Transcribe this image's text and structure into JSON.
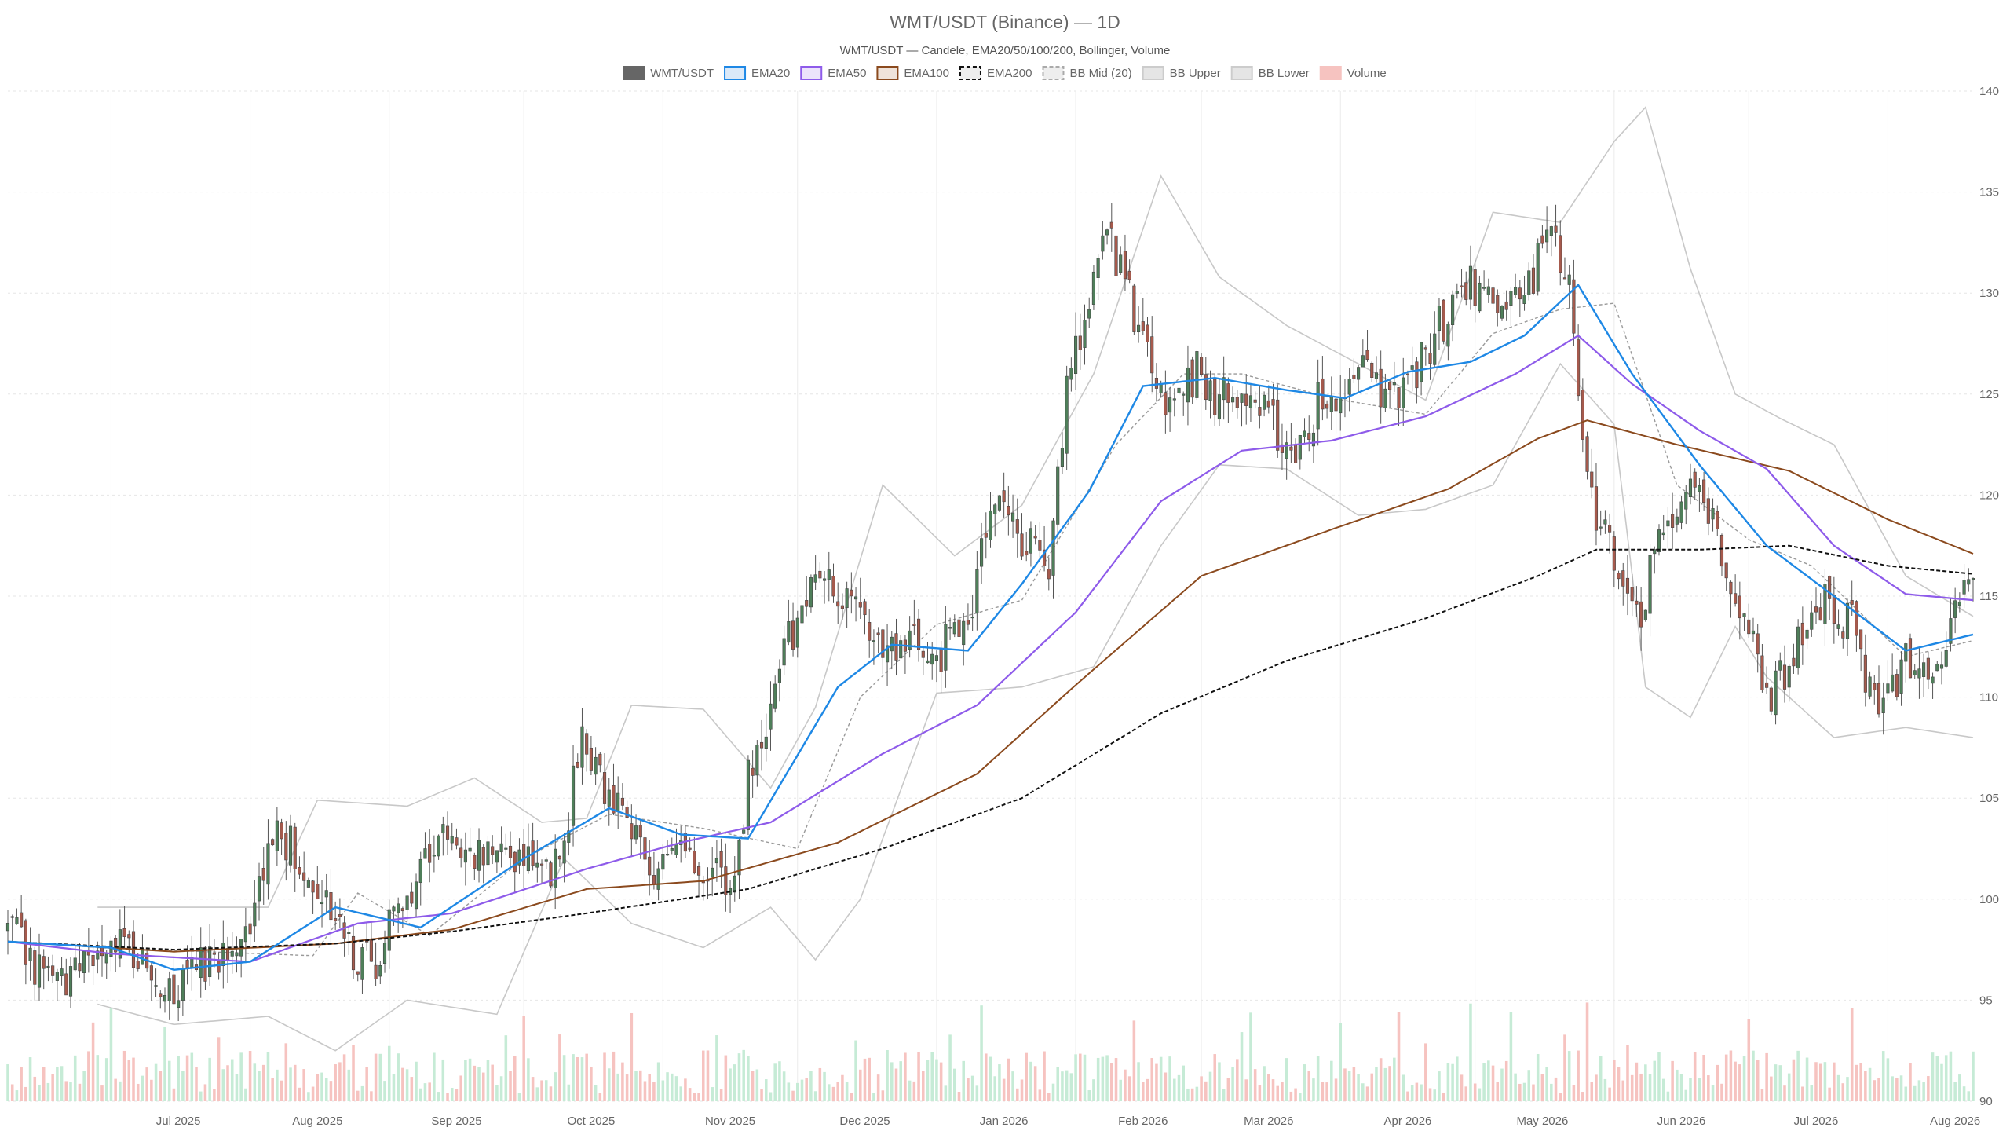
{
  "chart_data": {
    "type": "candlestick",
    "title": "WMT/USDT (Binance) — 1D",
    "subtitle": "WMT/USDT — Candele, EMA20/50/100/200, Bollinger, Volume",
    "ylim": [
      90,
      140
    ],
    "y_ticks": [
      90,
      95,
      100,
      105,
      110,
      115,
      120,
      125,
      130,
      135,
      140
    ],
    "x_ticks": [
      "Jul 2025",
      "Aug 2025",
      "Sep 2025",
      "Oct 2025",
      "Nov 2025",
      "Dec 2025",
      "Jan 2026",
      "Feb 2026",
      "Mar 2026",
      "Apr 2026",
      "May 2026",
      "Jun 2026",
      "Jul 2026",
      "Aug 2026"
    ],
    "grid": true,
    "legend_position": "top-center",
    "legend": [
      {
        "label": "WMT/USDT",
        "style": "solid",
        "color": "#666666",
        "fill": "#666666"
      },
      {
        "label": "EMA20",
        "style": "solid",
        "color": "#1e88e5",
        "fill": "#dbe9f8"
      },
      {
        "label": "EMA50",
        "style": "solid",
        "color": "#8e5bea",
        "fill": "#ece3fb"
      },
      {
        "label": "EMA100",
        "style": "solid",
        "color": "#8b4a1e",
        "fill": "#efe3da"
      },
      {
        "label": "EMA200",
        "style": "dashed",
        "color": "#111111",
        "fill": "#eeeeee"
      },
      {
        "label": "BB Mid (20)",
        "style": "dashed",
        "color": "#aaaaaa",
        "fill": "#eeeeee"
      },
      {
        "label": "BB Upper",
        "style": "solid",
        "color": "#cccccc",
        "fill": "#e5e5e5"
      },
      {
        "label": "BB Lower",
        "style": "solid",
        "color": "#cccccc",
        "fill": "#e5e5e5"
      },
      {
        "label": "Volume",
        "style": "solid",
        "color": "#f6c3c0",
        "fill": "#f6c3c0"
      }
    ],
    "colors": {
      "up": "#4f7f5a",
      "down": "#a65a4d",
      "ema20": "#1e88e5",
      "ema50": "#8e5bea",
      "ema100": "#8b4a1e",
      "ema200": "#111111",
      "bb_mid": "#9a9a9a",
      "bb_band": "#c8c8c8",
      "vol_up": "#c6ebd6",
      "vol_down": "#f6c3c0"
    },
    "anchors": {
      "close": [
        [
          "2025-06-08",
          98.6
        ],
        [
          "2025-06-14",
          96.8
        ],
        [
          "2025-06-20",
          95.6
        ],
        [
          "2025-06-27",
          97.3
        ],
        [
          "2025-07-04",
          98.2
        ],
        [
          "2025-07-10",
          96.4
        ],
        [
          "2025-07-16",
          95.6
        ],
        [
          "2025-07-22",
          96.8
        ],
        [
          "2025-07-28",
          98.1
        ],
        [
          "2025-08-02",
          99.4
        ],
        [
          "2025-08-06",
          103.4
        ],
        [
          "2025-08-12",
          102.2
        ],
        [
          "2025-08-18",
          100.2
        ],
        [
          "2025-08-24",
          97.6
        ],
        [
          "2025-08-29",
          96.3
        ],
        [
          "2025-09-03",
          99.8
        ],
        [
          "2025-09-08",
          101.6
        ],
        [
          "2025-09-14",
          103.5
        ],
        [
          "2025-09-20",
          102.2
        ],
        [
          "2025-09-26",
          102.7
        ],
        [
          "2025-10-02",
          101.6
        ],
        [
          "2025-10-07",
          101.2
        ],
        [
          "2025-10-11",
          104.3
        ],
        [
          "2025-10-14",
          108.3
        ],
        [
          "2025-10-20",
          104.9
        ],
        [
          "2025-10-26",
          102.9
        ],
        [
          "2025-10-31",
          101.0
        ],
        [
          "2025-11-06",
          102.3
        ],
        [
          "2025-11-12",
          101.6
        ],
        [
          "2025-11-17",
          100.8
        ],
        [
          "2025-11-20",
          106.2
        ],
        [
          "2025-11-26",
          110.6
        ],
        [
          "2025-12-02",
          114.7
        ],
        [
          "2025-12-08",
          116.3
        ],
        [
          "2025-12-14",
          114.2
        ],
        [
          "2025-12-20",
          112.2
        ],
        [
          "2025-12-27",
          112.5
        ],
        [
          "2026-01-02",
          112.3
        ],
        [
          "2026-01-08",
          114.0
        ],
        [
          "2026-01-14",
          119.6
        ],
        [
          "2026-01-20",
          118.0
        ],
        [
          "2026-01-26",
          116.5
        ],
        [
          "2026-01-30",
          125.5
        ],
        [
          "2026-02-04",
          128.9
        ],
        [
          "2026-02-08",
          133.7
        ],
        [
          "2026-02-12",
          130.2
        ],
        [
          "2026-02-16",
          128.0
        ],
        [
          "2026-02-22",
          124.4
        ],
        [
          "2026-02-28",
          126.2
        ],
        [
          "2026-03-04",
          125.0
        ],
        [
          "2026-03-10",
          125.1
        ],
        [
          "2026-03-16",
          124.0
        ],
        [
          "2026-03-22",
          121.9
        ],
        [
          "2026-03-28",
          125.3
        ],
        [
          "2026-04-02",
          124.3
        ],
        [
          "2026-04-06",
          126.2
        ],
        [
          "2026-04-12",
          124.8
        ],
        [
          "2026-04-18",
          126.2
        ],
        [
          "2026-04-24",
          128.7
        ],
        [
          "2026-04-30",
          130.5
        ],
        [
          "2026-05-06",
          129.6
        ],
        [
          "2026-05-12",
          130.2
        ],
        [
          "2026-05-18",
          132.6
        ],
        [
          "2026-05-22",
          131.3
        ],
        [
          "2026-05-26",
          120.3
        ],
        [
          "2026-06-01",
          116.7
        ],
        [
          "2026-06-06",
          113.5
        ],
        [
          "2026-06-12",
          118.7
        ],
        [
          "2026-06-18",
          121.0
        ],
        [
          "2026-06-24",
          117.9
        ],
        [
          "2026-06-30",
          113.7
        ],
        [
          "2026-07-06",
          110.2
        ],
        [
          "2026-07-12",
          112.6
        ],
        [
          "2026-07-18",
          114.7
        ],
        [
          "2026-07-24",
          113.5
        ],
        [
          "2026-07-30",
          108.7
        ],
        [
          "2026-08-05",
          112.0
        ],
        [
          "2026-08-11",
          111.3
        ],
        [
          "2026-08-16",
          114.3
        ],
        [
          "2026-08-20",
          115.8
        ]
      ],
      "ema20": [
        [
          "2025-06-08",
          97.9
        ],
        [
          "2025-07-01",
          97.6
        ],
        [
          "2025-07-15",
          96.5
        ],
        [
          "2025-08-01",
          96.9
        ],
        [
          "2025-08-20",
          99.6
        ],
        [
          "2025-09-08",
          98.6
        ],
        [
          "2025-10-01",
          102.0
        ],
        [
          "2025-10-20",
          104.5
        ],
        [
          "2025-11-05",
          103.2
        ],
        [
          "2025-11-20",
          103.0
        ],
        [
          "2025-12-10",
          110.5
        ],
        [
          "2025-12-22",
          112.6
        ],
        [
          "2026-01-08",
          112.3
        ],
        [
          "2026-01-20",
          115.6
        ],
        [
          "2026-02-04",
          120.2
        ],
        [
          "2026-02-16",
          125.4
        ],
        [
          "2026-03-04",
          125.8
        ],
        [
          "2026-03-20",
          125.2
        ],
        [
          "2026-04-02",
          124.8
        ],
        [
          "2026-04-16",
          126.1
        ],
        [
          "2026-04-30",
          126.6
        ],
        [
          "2026-05-12",
          127.9
        ],
        [
          "2026-05-24",
          130.4
        ],
        [
          "2026-06-05",
          126.0
        ],
        [
          "2026-06-20",
          121.5
        ],
        [
          "2026-07-05",
          117.5
        ],
        [
          "2026-07-20",
          115.0
        ],
        [
          "2026-08-05",
          112.3
        ],
        [
          "2026-08-20",
          113.1
        ]
      ],
      "ema50": [
        [
          "2025-06-08",
          97.9
        ],
        [
          "2025-07-01",
          97.3
        ],
        [
          "2025-08-01",
          96.9
        ],
        [
          "2025-08-25",
          98.8
        ],
        [
          "2025-09-15",
          99.3
        ],
        [
          "2025-10-15",
          101.5
        ],
        [
          "2025-11-05",
          102.8
        ],
        [
          "2025-11-25",
          103.8
        ],
        [
          "2025-12-20",
          107.2
        ],
        [
          "2026-01-10",
          109.6
        ],
        [
          "2026-02-01",
          114.2
        ],
        [
          "2026-02-20",
          119.7
        ],
        [
          "2026-03-10",
          122.2
        ],
        [
          "2026-03-30",
          122.7
        ],
        [
          "2026-04-20",
          123.9
        ],
        [
          "2026-05-10",
          126.0
        ],
        [
          "2026-05-24",
          127.9
        ],
        [
          "2026-06-05",
          125.5
        ],
        [
          "2026-06-20",
          123.2
        ],
        [
          "2026-07-05",
          121.3
        ],
        [
          "2026-07-20",
          117.5
        ],
        [
          "2026-08-05",
          115.1
        ],
        [
          "2026-08-20",
          114.8
        ]
      ],
      "ema100": [
        [
          "2025-06-08",
          97.9
        ],
        [
          "2025-07-15",
          97.4
        ],
        [
          "2025-08-20",
          97.8
        ],
        [
          "2025-09-15",
          98.5
        ],
        [
          "2025-10-15",
          100.5
        ],
        [
          "2025-11-10",
          100.9
        ],
        [
          "2025-12-10",
          102.8
        ],
        [
          "2026-01-10",
          106.2
        ],
        [
          "2026-02-01",
          110.6
        ],
        [
          "2026-03-01",
          116.0
        ],
        [
          "2026-03-30",
          118.3
        ],
        [
          "2026-04-25",
          120.3
        ],
        [
          "2026-05-15",
          122.8
        ],
        [
          "2026-05-26",
          123.7
        ],
        [
          "2026-06-15",
          122.5
        ],
        [
          "2026-07-10",
          121.2
        ],
        [
          "2026-08-01",
          118.8
        ],
        [
          "2026-08-20",
          117.1
        ]
      ],
      "ema200": [
        [
          "2025-06-08",
          97.9
        ],
        [
          "2025-07-15",
          97.5
        ],
        [
          "2025-08-20",
          97.8
        ],
        [
          "2025-09-15",
          98.4
        ],
        [
          "2025-10-15",
          99.3
        ],
        [
          "2025-11-20",
          100.5
        ],
        [
          "2025-12-20",
          102.5
        ],
        [
          "2026-01-20",
          105.0
        ],
        [
          "2026-02-20",
          109.2
        ],
        [
          "2026-03-20",
          111.8
        ],
        [
          "2026-04-20",
          113.9
        ],
        [
          "2026-05-15",
          116.0
        ],
        [
          "2026-05-28",
          117.3
        ],
        [
          "2026-06-20",
          117.3
        ],
        [
          "2026-07-10",
          117.5
        ],
        [
          "2026-08-01",
          116.5
        ],
        [
          "2026-08-20",
          116.1
        ]
      ],
      "bb_upper": [
        [
          "2025-06-28",
          99.6
        ],
        [
          "2025-07-15",
          99.6
        ],
        [
          "2025-08-05",
          99.6
        ],
        [
          "2025-08-16",
          104.9
        ],
        [
          "2025-09-05",
          104.6
        ],
        [
          "2025-09-20",
          106.0
        ],
        [
          "2025-10-05",
          103.8
        ],
        [
          "2025-10-15",
          104.0
        ],
        [
          "2025-10-25",
          109.6
        ],
        [
          "2025-11-10",
          109.4
        ],
        [
          "2025-11-25",
          105.5
        ],
        [
          "2025-12-05",
          109.5
        ],
        [
          "2025-12-20",
          120.5
        ],
        [
          "2026-01-05",
          117.0
        ],
        [
          "2026-01-20",
          119.5
        ],
        [
          "2026-02-05",
          126.0
        ],
        [
          "2026-02-20",
          135.8
        ],
        [
          "2026-03-05",
          130.8
        ],
        [
          "2026-03-20",
          128.4
        ],
        [
          "2026-04-05",
          126.5
        ],
        [
          "2026-04-20",
          124.7
        ],
        [
          "2026-05-05",
          134.0
        ],
        [
          "2026-05-20",
          133.5
        ],
        [
          "2026-06-01",
          137.5
        ],
        [
          "2026-06-08",
          139.2
        ],
        [
          "2026-06-18",
          131.2
        ],
        [
          "2026-06-28",
          125.0
        ],
        [
          "2026-07-08",
          123.8
        ],
        [
          "2026-07-20",
          122.5
        ],
        [
          "2026-08-05",
          116.0
        ],
        [
          "2026-08-20",
          114.0
        ]
      ],
      "bb_mid": [
        [
          "2025-06-28",
          97.6
        ],
        [
          "2025-08-15",
          97.2
        ],
        [
          "2025-08-25",
          100.3
        ],
        [
          "2025-09-10",
          98.2
        ],
        [
          "2025-10-01",
          102.0
        ],
        [
          "2025-10-20",
          104.2
        ],
        [
          "2025-11-10",
          103.5
        ],
        [
          "2025-12-01",
          102.5
        ],
        [
          "2025-12-15",
          110.0
        ],
        [
          "2026-01-01",
          113.6
        ],
        [
          "2026-01-20",
          114.8
        ],
        [
          "2026-02-10",
          122.5
        ],
        [
          "2026-02-25",
          126.0
        ],
        [
          "2026-03-10",
          126.0
        ],
        [
          "2026-03-30",
          124.8
        ],
        [
          "2026-04-20",
          124.0
        ],
        [
          "2026-05-05",
          128.0
        ],
        [
          "2026-05-20",
          129.2
        ],
        [
          "2026-06-01",
          129.5
        ],
        [
          "2026-06-15",
          120.5
        ],
        [
          "2026-07-01",
          117.8
        ],
        [
          "2026-07-15",
          116.5
        ],
        [
          "2026-08-05",
          112.0
        ],
        [
          "2026-08-20",
          112.8
        ]
      ],
      "bb_lower": [
        [
          "2025-06-28",
          94.8
        ],
        [
          "2025-07-15",
          93.8
        ],
        [
          "2025-08-05",
          94.2
        ],
        [
          "2025-08-20",
          92.5
        ],
        [
          "2025-09-05",
          95.0
        ],
        [
          "2025-09-25",
          94.3
        ],
        [
          "2025-10-10",
          102.0
        ],
        [
          "2025-10-25",
          98.8
        ],
        [
          "2025-11-10",
          97.6
        ],
        [
          "2025-11-25",
          99.6
        ],
        [
          "2025-12-05",
          97.0
        ],
        [
          "2025-12-15",
          100.0
        ],
        [
          "2026-01-01",
          110.2
        ],
        [
          "2026-01-20",
          110.5
        ],
        [
          "2026-02-05",
          111.5
        ],
        [
          "2026-02-20",
          117.5
        ],
        [
          "2026-03-05",
          121.5
        ],
        [
          "2026-03-20",
          121.3
        ],
        [
          "2026-04-05",
          119.0
        ],
        [
          "2026-04-20",
          119.3
        ],
        [
          "2026-05-05",
          120.5
        ],
        [
          "2026-05-20",
          126.5
        ],
        [
          "2026-06-01",
          123.5
        ],
        [
          "2026-06-08",
          110.5
        ],
        [
          "2026-06-18",
          109.0
        ],
        [
          "2026-06-28",
          113.5
        ],
        [
          "2026-07-05",
          111.0
        ],
        [
          "2026-07-20",
          108.0
        ],
        [
          "2026-08-05",
          108.5
        ],
        [
          "2026-08-20",
          108.0
        ]
      ]
    }
  }
}
